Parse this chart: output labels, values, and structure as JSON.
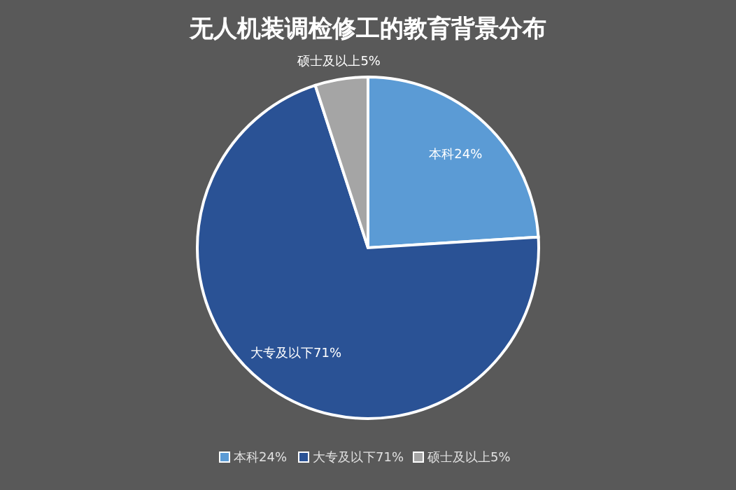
{
  "chart_data": {
    "type": "pie",
    "title": "无人机装调检修工的教育背景分布",
    "categories": [
      "本科24%",
      "大专及以下71%",
      "硕士及以上5%"
    ],
    "values": [
      24,
      71,
      5
    ],
    "colors": [
      "#5b9bd5",
      "#2a5295",
      "#a5a5a5"
    ],
    "legend": "bottom"
  }
}
